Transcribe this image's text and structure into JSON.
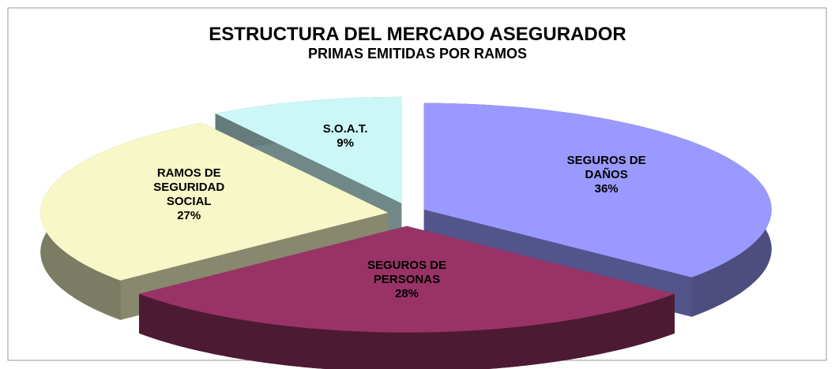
{
  "chart_data": {
    "type": "pie3d",
    "title": "ESTRUCTURA DEL MERCADO ASEGURADOR",
    "subtitle": "PRIMAS EMITIDAS POR RAMOS",
    "categories": [
      "SEGUROS DE DAÑOS",
      "SEGUROS DE PERSONAS",
      "RAMOS DE SEGURIDAD SOCIAL",
      "S.O.A.T."
    ],
    "values": [
      36,
      28,
      27,
      9
    ],
    "value_labels": [
      "36%",
      "28%",
      "27%",
      "9%"
    ],
    "colors": [
      "#9999ff",
      "#993366",
      "#f7f7c8",
      "#ccf7f7"
    ]
  }
}
